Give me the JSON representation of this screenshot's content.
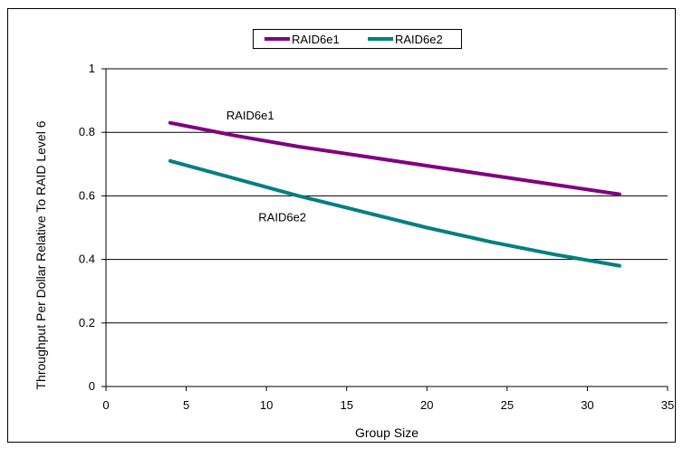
{
  "chart_data": {
    "type": "line",
    "xlabel": "Group Size",
    "ylabel": "Throughput Per Dollar Relative To RAID Level 6",
    "xlim": [
      0,
      35
    ],
    "ylim": [
      0,
      1
    ],
    "xticks": [
      0,
      5,
      10,
      15,
      20,
      25,
      30,
      35
    ],
    "yticks": [
      0,
      0.2,
      0.4,
      0.6,
      0.8,
      1
    ],
    "grid": "horizontal",
    "legend_position": "top-center",
    "series": [
      {
        "name": "RAID6e1",
        "color": "#800080",
        "x": [
          4,
          8,
          12,
          16,
          20,
          24,
          28,
          32
        ],
        "y": [
          0.83,
          0.79,
          0.755,
          0.725,
          0.695,
          0.665,
          0.635,
          0.605
        ]
      },
      {
        "name": "RAID6e2",
        "color": "#008080",
        "x": [
          4,
          8,
          12,
          16,
          20,
          24,
          28,
          32
        ],
        "y": [
          0.71,
          0.655,
          0.6,
          0.55,
          0.5,
          0.455,
          0.415,
          0.38
        ]
      }
    ],
    "annotations": [
      {
        "text": "RAID6e1",
        "x": 7.5,
        "y": 0.84
      },
      {
        "text": "RAID6e2",
        "x": 9.5,
        "y": 0.52
      }
    ]
  }
}
